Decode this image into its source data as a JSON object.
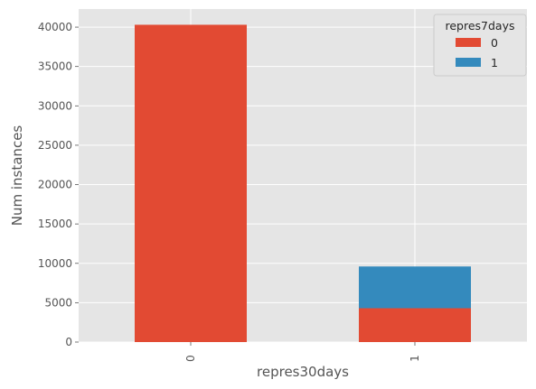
{
  "chart_data": {
    "type": "bar",
    "stacked": true,
    "categories": [
      "0",
      "1"
    ],
    "xlabel": "repres30days",
    "ylabel": "Num instances",
    "ylim": [
      0,
      42300
    ],
    "yticks": [
      0,
      5000,
      10000,
      15000,
      20000,
      25000,
      30000,
      35000,
      40000
    ],
    "grid": true,
    "legend": {
      "title": "repres7days",
      "placement": "top-right"
    },
    "series": [
      {
        "name": "0",
        "color": "#E24A33",
        "values": [
          40300,
          4300
        ]
      },
      {
        "name": "1",
        "color": "#348ABD",
        "values": [
          0,
          5300
        ]
      }
    ]
  }
}
